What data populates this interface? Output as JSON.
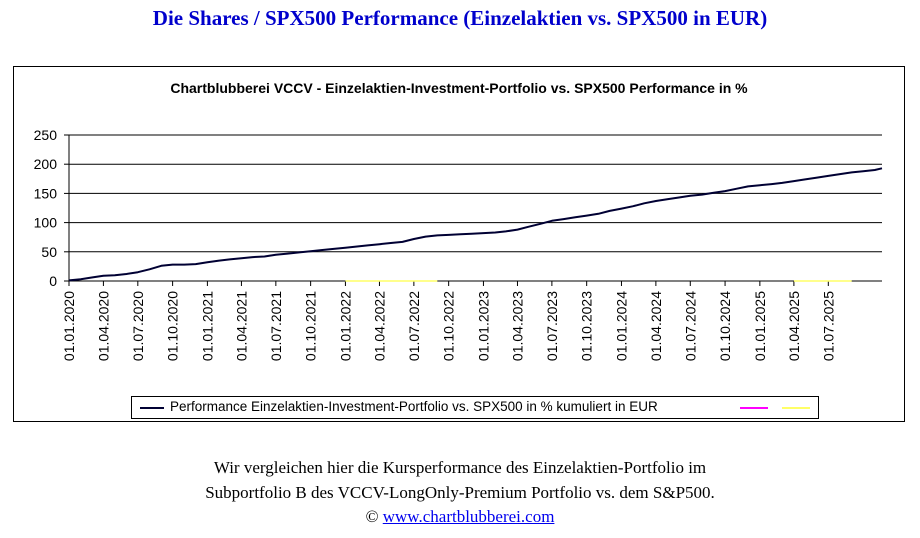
{
  "page": {
    "heading": "Die Shares / SPX500 Performance (Einzelaktien vs. SPX500 in EUR)",
    "caption_line1": "Wir vergleichen hier die Kursperformance des Einzelaktien-Portfolio im",
    "caption_line2": "Subportfolio B des VCCV-LongOnly-Premium Portfolio vs. dem S&P500.",
    "copyright_symbol": "©",
    "link_text": "www.chartblubberei.com"
  },
  "colors": {
    "heading": "#0000cc",
    "series_main": "#000033",
    "series_magenta": "#ff00ff",
    "series_yellow": "#ffff66",
    "link": "#0000ee"
  },
  "chart_data": {
    "type": "line",
    "title": "Chartblubberei VCCV - Einzelaktien-Investment-Portfolio vs. SPX500 Performance in %",
    "xlabel": "",
    "ylabel": "",
    "ylim": [
      0,
      250
    ],
    "yticks": [
      "0",
      "50",
      "100",
      "150",
      "200",
      "250"
    ],
    "xlim": [
      "2020-01-01",
      "2025-11-20"
    ],
    "xticks": [
      "01.01.2020",
      "01.04.2020",
      "01.07.2020",
      "01.10.2020",
      "01.01.2021",
      "01.04.2021",
      "01.07.2021",
      "01.10.2021",
      "01.01.2022",
      "01.04.2022",
      "01.07.2022",
      "01.10.2022",
      "01.01.2023",
      "01.04.2023",
      "01.07.2023",
      "01.10.2023",
      "01.01.2024",
      "01.04.2024",
      "01.07.2024",
      "01.10.2024",
      "01.01.2025",
      "01.04.2025",
      "01.07.2025"
    ],
    "grid": "horizontal",
    "legend_position": "bottom",
    "series": [
      {
        "name": "Performance Einzelaktien-Investment-Portfolio vs. SPX500 in % kumuliert in EUR",
        "x": [
          "2020-01-01",
          "2020-02-01",
          "2020-03-01",
          "2020-04-01",
          "2020-05-01",
          "2020-06-01",
          "2020-07-01",
          "2020-08-01",
          "2020-09-01",
          "2020-10-01",
          "2020-11-01",
          "2020-12-01",
          "2021-01-01",
          "2021-02-01",
          "2021-03-01",
          "2021-04-01",
          "2021-05-01",
          "2021-06-01",
          "2021-07-01",
          "2021-08-01",
          "2021-09-01",
          "2021-10-01",
          "2021-11-01",
          "2021-12-01",
          "2022-01-01",
          "2022-02-01",
          "2022-03-01",
          "2022-04-01",
          "2022-05-01",
          "2022-06-01",
          "2022-07-01",
          "2022-08-01",
          "2022-09-01",
          "2022-10-01",
          "2022-11-01",
          "2022-12-01",
          "2023-01-01",
          "2023-02-01",
          "2023-03-01",
          "2023-04-01",
          "2023-05-01",
          "2023-06-01",
          "2023-07-01",
          "2023-08-01",
          "2023-09-01",
          "2023-10-01",
          "2023-11-01",
          "2023-12-01",
          "2024-01-01",
          "2024-02-01",
          "2024-03-01",
          "2024-04-01",
          "2024-05-01",
          "2024-06-01",
          "2024-07-01",
          "2024-08-01",
          "2024-09-01",
          "2024-10-01",
          "2024-11-01",
          "2024-12-01",
          "2025-01-01",
          "2025-02-01",
          "2025-03-01",
          "2025-04-01",
          "2025-05-01",
          "2025-06-01",
          "2025-07-01",
          "2025-08-01",
          "2025-09-01",
          "2025-10-01",
          "2025-11-01",
          "2025-11-20"
        ],
        "y": [
          1,
          3,
          6,
          9,
          10,
          12,
          15,
          20,
          26,
          28,
          28,
          29,
          32,
          35,
          37,
          39,
          41,
          42,
          45,
          47,
          49,
          51,
          53,
          55,
          57,
          59,
          61,
          63,
          65,
          67,
          72,
          76,
          78,
          79,
          80,
          81,
          82,
          83,
          85,
          88,
          93,
          98,
          103,
          106,
          109,
          112,
          115,
          120,
          124,
          128,
          133,
          137,
          140,
          143,
          146,
          148,
          151,
          154,
          158,
          162,
          164,
          166,
          168,
          171,
          174,
          177,
          180,
          183,
          186,
          188,
          190,
          193
        ]
      },
      {
        "name": "",
        "color": "#ff00ff",
        "x": [],
        "y": []
      },
      {
        "name": "",
        "color": "#ffff66",
        "x": [
          "2022-01-01",
          "2022-02-01",
          "2022-03-01",
          "2022-04-01",
          "2022-05-01",
          "2022-06-01",
          "2022-07-01",
          "2022-08-01",
          "2022-09-01",
          "BREAK",
          "2025-04-01",
          "2025-05-01",
          "2025-06-01",
          "2025-07-01",
          "2025-08-01",
          "2025-09-01"
        ],
        "y": [
          0,
          0,
          0,
          0,
          0,
          0,
          0,
          0,
          0,
          null,
          0,
          0,
          0,
          0,
          0,
          0
        ]
      }
    ]
  }
}
